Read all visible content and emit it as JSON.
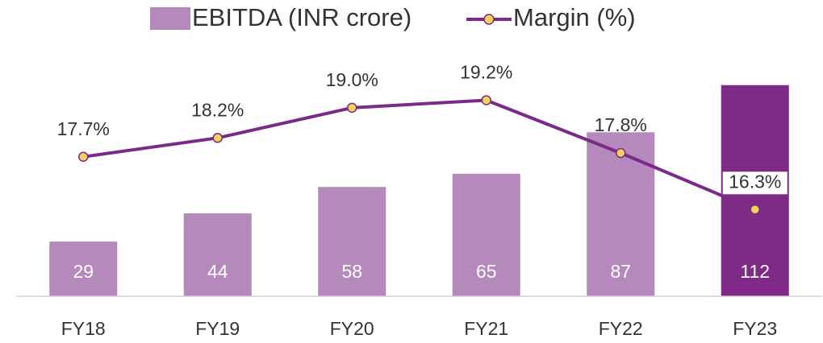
{
  "chart_data": {
    "type": "bar_line",
    "categories": [
      "FY18",
      "FY19",
      "FY20",
      "FY21",
      "FY22",
      "FY23"
    ],
    "series": [
      {
        "name": "EBITDA (INR crore)",
        "type": "bar",
        "color": "#b589bb",
        "colors": [
          "#b589bb",
          "#b589bb",
          "#b589bb",
          "#b589bb",
          "#b589bb",
          "#7e2a86"
        ],
        "values": [
          29,
          44,
          58,
          65,
          87,
          112
        ]
      },
      {
        "name": "Margin (%)",
        "type": "line",
        "axis": "y2",
        "color": "#7b2a8a",
        "marker_color": "#f5d35a",
        "values": [
          17.7,
          18.2,
          19.0,
          19.2,
          17.8,
          16.3
        ],
        "value_labels": [
          "17.7%",
          "18.2%",
          "19.0%",
          "19.2%",
          "17.8%",
          "16.3%"
        ]
      }
    ],
    "ylim": [
      0,
      120
    ],
    "y2lim": [
      14,
      20
    ],
    "legend": "top"
  }
}
